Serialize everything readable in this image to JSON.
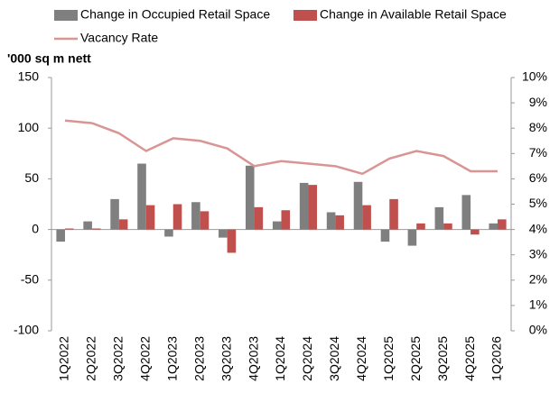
{
  "chart_data": {
    "type": "bar",
    "y_label": "'000 sq m nett",
    "categories": [
      "1Q2022",
      "2Q2022",
      "3Q2022",
      "4Q2022",
      "1Q2023",
      "2Q2023",
      "3Q2023",
      "4Q2023",
      "1Q2024",
      "2Q2024",
      "3Q2024",
      "4Q2024",
      "1Q2025",
      "2Q2025",
      "3Q2025",
      "4Q2025",
      "1Q2026"
    ],
    "series": [
      {
        "name": "Change in Occupied Retail Space",
        "type": "bar",
        "color": "#7f7f7f",
        "values": [
          -12,
          8,
          30,
          65,
          -7,
          27,
          -8,
          63,
          8,
          46,
          17,
          47,
          -12,
          -16,
          22,
          34,
          6
        ]
      },
      {
        "name": "Change in Available Retail Space",
        "type": "bar",
        "color": "#c0504d",
        "values": [
          1,
          1,
          10,
          24,
          25,
          18,
          -23,
          22,
          19,
          44,
          14,
          24,
          30,
          6,
          6,
          -5,
          10
        ]
      },
      {
        "name": "Vacancy Rate",
        "type": "line",
        "axis": "y2",
        "color": "#d99594",
        "values": [
          8.3,
          8.2,
          7.8,
          7.1,
          7.6,
          7.5,
          7.2,
          6.5,
          6.7,
          6.6,
          6.5,
          6.2,
          6.8,
          7.1,
          6.9,
          6.3,
          6.3
        ]
      }
    ],
    "ylim": [
      -100,
      150
    ],
    "yticks": [
      -100,
      -50,
      0,
      50,
      100,
      150
    ],
    "y2lim": [
      0,
      10
    ],
    "y2ticks": [
      {
        "value": 0,
        "label": "0%"
      },
      {
        "value": 1,
        "label": "1%"
      },
      {
        "value": 2,
        "label": "2%"
      },
      {
        "value": 3,
        "label": "3%"
      },
      {
        "value": 4,
        "label": "4%"
      },
      {
        "value": 5,
        "label": "5%"
      },
      {
        "value": 6,
        "label": "6%"
      },
      {
        "value": 7,
        "label": "7%"
      },
      {
        "value": 8,
        "label": "8%"
      },
      {
        "value": 9,
        "label": "9%"
      },
      {
        "value": 10,
        "label": "10%"
      }
    ],
    "grid": false
  }
}
